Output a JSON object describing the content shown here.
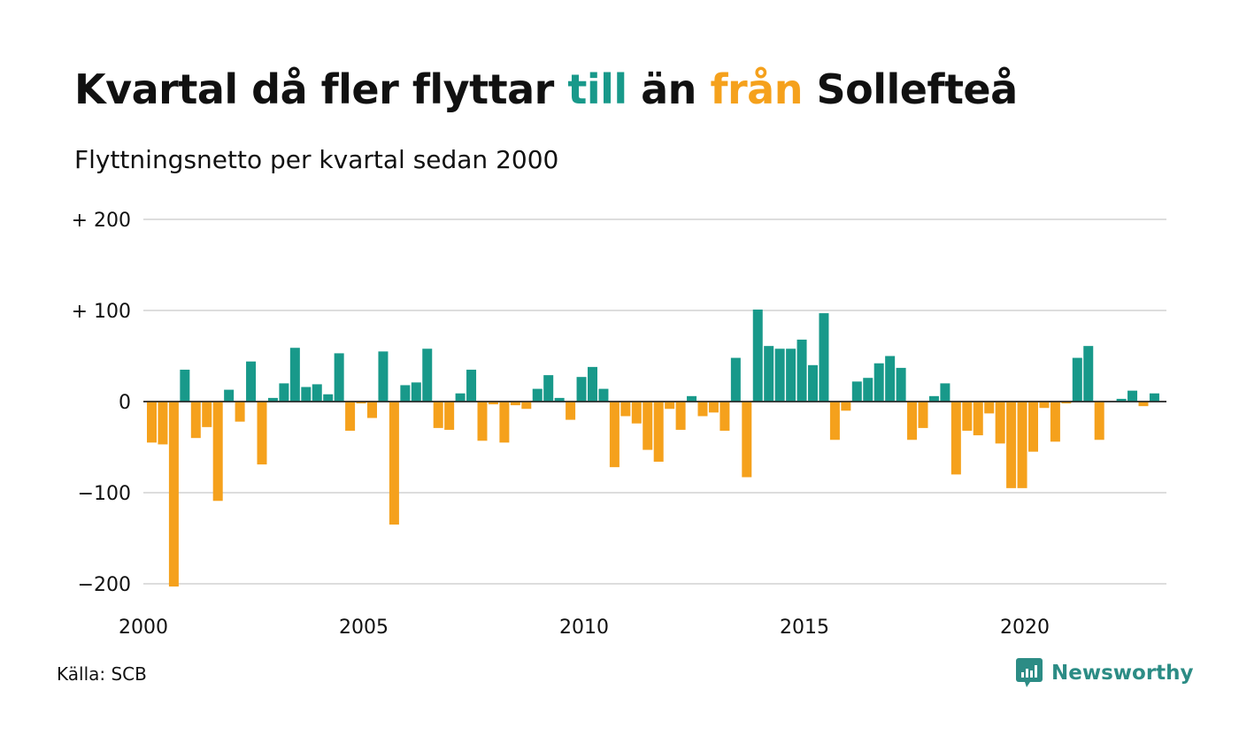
{
  "title": {
    "part1": "Kvartal då fler flyttar ",
    "till": "till",
    "part2": " än ",
    "fran": "från",
    "part3": " Sollefteå"
  },
  "subtitle": "Flyttningsnetto per kvartal sedan 2000",
  "source": "Källa: SCB",
  "brand": "Newsworthy",
  "colors": {
    "positive": "#18998a",
    "negative": "#f5a11c",
    "grid": "#dddddd",
    "brand": "#2c8c85"
  },
  "chart_data": {
    "type": "bar",
    "title": "Kvartal då fler flyttar till än från Sollefteå",
    "subtitle": "Flyttningsnetto per kvartal sedan 2000",
    "start": {
      "year": 2000,
      "quarter": 1
    },
    "values": [
      -45,
      -47,
      -203,
      35,
      -40,
      -28,
      -109,
      13,
      -22,
      44,
      -69,
      4,
      20,
      59,
      16,
      19,
      8,
      53,
      -32,
      -2,
      -18,
      55,
      -135,
      18,
      21,
      58,
      -29,
      -31,
      9,
      35,
      -43,
      -3,
      -45,
      -4,
      -8,
      14,
      29,
      4,
      -20,
      27,
      38,
      14,
      -72,
      -16,
      -24,
      -53,
      -66,
      -8,
      -31,
      6,
      -16,
      -12,
      -32,
      48,
      -83,
      101,
      61,
      58,
      58,
      68,
      40,
      97,
      -42,
      -10,
      22,
      26,
      42,
      50,
      37,
      -42,
      -29,
      6,
      20,
      -80,
      -32,
      -37,
      -13,
      -46,
      -95,
      -95,
      -55,
      -7,
      -44,
      -2,
      48,
      61,
      -42,
      0,
      3,
      12,
      -5,
      9
    ],
    "xticks": [
      2000,
      2005,
      2010,
      2015,
      2020
    ],
    "yticks": [
      200,
      100,
      0,
      -100,
      -200
    ],
    "ytick_labels": [
      "+ 200",
      "+ 100",
      "0",
      "−100",
      "−200"
    ],
    "ylim": [
      -200,
      200
    ],
    "grid": true,
    "legend": "none"
  }
}
